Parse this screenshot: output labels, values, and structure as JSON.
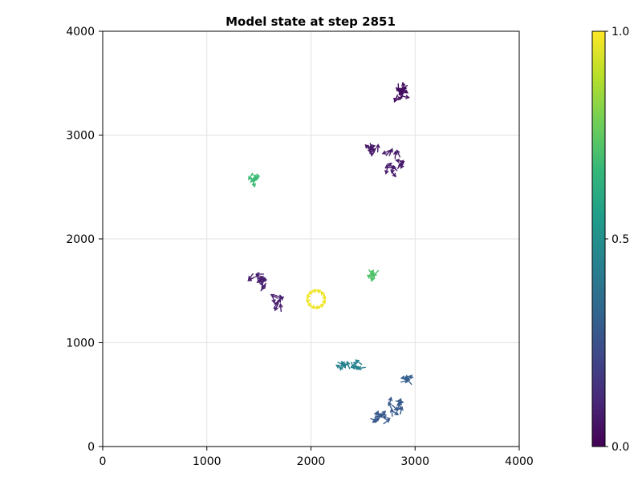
{
  "chart_data": {
    "type": "scatter",
    "title": "Model state at step 2851",
    "xlabel": "",
    "ylabel": "",
    "xlim": [
      0,
      4000
    ],
    "ylim": [
      0,
      4000
    ],
    "xticks": [
      0,
      1000,
      2000,
      3000,
      4000
    ],
    "yticks": [
      0,
      1000,
      2000,
      3000,
      4000
    ],
    "xtick_labels": [
      "0",
      "1000",
      "2000",
      "3000",
      "4000"
    ],
    "ytick_labels": [
      "0",
      "1000",
      "2000",
      "3000",
      "4000"
    ],
    "grid": true,
    "marker": "arrow",
    "colormap": "viridis",
    "colorbar": {
      "range": [
        0.0,
        1.0
      ],
      "ticks": [
        0.0,
        0.5,
        1.0
      ],
      "tick_labels": [
        "0.0",
        "0.5",
        "1.0"
      ],
      "stops": [
        "#440154",
        "#482878",
        "#3e4989",
        "#31688e",
        "#26828e",
        "#1f9e89",
        "#35b779",
        "#6ece58",
        "#b5de2b",
        "#fde725"
      ]
    },
    "clusters": [
      {
        "center": [
          2850,
          3410
        ],
        "spread": [
          60,
          60
        ],
        "count": 14,
        "value": 0.04
      },
      {
        "center": [
          2600,
          2860
        ],
        "spread": [
          70,
          35
        ],
        "count": 8,
        "value": 0.07
      },
      {
        "center": [
          2800,
          2730
        ],
        "spread": [
          80,
          110
        ],
        "count": 16,
        "value": 0.07
      },
      {
        "center": [
          1450,
          2570
        ],
        "spread": [
          40,
          45
        ],
        "count": 7,
        "value": 0.68
      },
      {
        "center": [
          1500,
          1600
        ],
        "spread": [
          80,
          80
        ],
        "count": 12,
        "value": 0.08
      },
      {
        "center": [
          1680,
          1390
        ],
        "spread": [
          60,
          60
        ],
        "count": 8,
        "value": 0.08
      },
      {
        "center": [
          2050,
          1420
        ],
        "spread": [
          80,
          80
        ],
        "count": 12,
        "value": 0.98,
        "ring": true
      },
      {
        "center": [
          2600,
          1660
        ],
        "spread": [
          40,
          40
        ],
        "count": 7,
        "value": 0.72
      },
      {
        "center": [
          2380,
          790
        ],
        "spread": [
          120,
          35
        ],
        "count": 12,
        "value": 0.44
      },
      {
        "center": [
          2920,
          620
        ],
        "spread": [
          30,
          45
        ],
        "count": 6,
        "value": 0.3
      },
      {
        "center": [
          2830,
          390
        ],
        "spread": [
          70,
          70
        ],
        "count": 10,
        "value": 0.28
      },
      {
        "center": [
          2660,
          280
        ],
        "spread": [
          80,
          40
        ],
        "count": 10,
        "value": 0.28
      }
    ]
  }
}
